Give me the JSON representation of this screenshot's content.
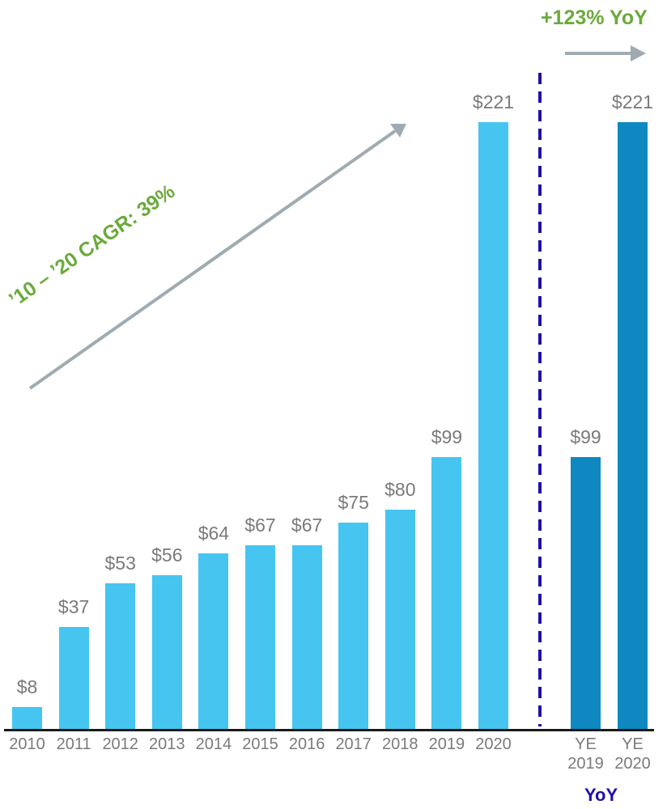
{
  "chart_data": {
    "type": "bar",
    "title": "",
    "xlabel": "",
    "ylabel": "",
    "grid": false,
    "legend": null,
    "ylim": [
      0,
      230
    ],
    "series": [
      {
        "name": "Annual",
        "color": "#46c5f0",
        "categories": [
          "2010",
          "2011",
          "2012",
          "2013",
          "2014",
          "2015",
          "2016",
          "2017",
          "2018",
          "2019",
          "2020"
        ],
        "values": [
          8,
          37,
          53,
          56,
          64,
          67,
          67,
          75,
          80,
          99,
          221
        ],
        "labels": [
          "$8",
          "$37",
          "$53",
          "$56",
          "$64",
          "$67",
          "$67",
          "$75",
          "$80",
          "$99",
          "$221"
        ]
      },
      {
        "name": "YoY",
        "color": "#0f88c2",
        "categories": [
          "YE 2019",
          "YE 2020"
        ],
        "values": [
          99,
          221
        ],
        "labels": [
          "$99",
          "$221"
        ]
      }
    ],
    "annotations": [
      {
        "text": "’10 – ’20 CAGR: 39%",
        "color": "#6aaa3a",
        "type": "diagonal-arrow"
      },
      {
        "text": "+123% YoY",
        "color": "#6aaa3a",
        "type": "horizontal-arrow"
      },
      {
        "text": "YoY",
        "color": "#1f0fa8",
        "type": "group-label"
      }
    ],
    "divider": {
      "style": "dashed",
      "color": "#1f0fa8"
    }
  },
  "labels": {
    "cagr": "’10 – ’20 CAGR: 39%",
    "yoy_growth": "+123% YoY",
    "yoy_group": "YoY",
    "ye_prefix": "YE",
    "ye_years": [
      "2019",
      "2020"
    ]
  },
  "colors": {
    "annual_bar": "#46c5f0",
    "yoy_bar": "#0f88c2",
    "value_text": "#7a7a7a",
    "annotation_green": "#6aaa3a",
    "arrow_gray": "#9fabb0",
    "divider_blue": "#1f0fa8",
    "axis": "#1a1a1a"
  }
}
